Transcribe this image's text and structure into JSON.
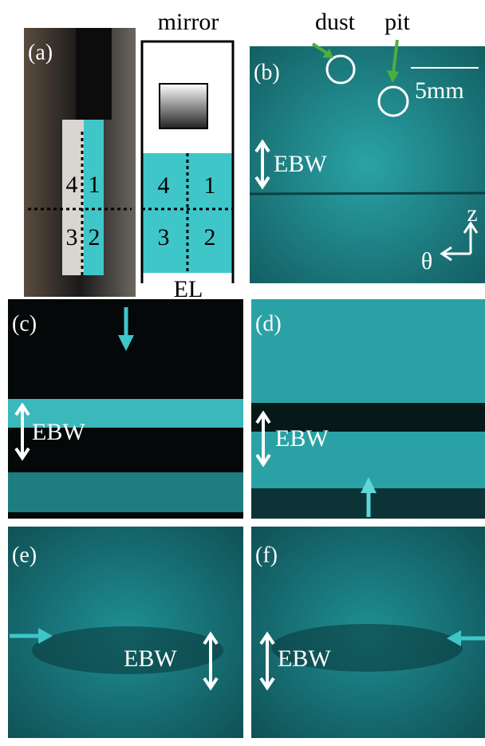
{
  "panel_a": {
    "label": "(a)",
    "quadrants": [
      "4",
      "1",
      "3",
      "2"
    ]
  },
  "diagram": {
    "top_label": "mirror",
    "bottom_label": "EL",
    "quadrants": [
      "4",
      "1",
      "3",
      "2"
    ]
  },
  "panel_b": {
    "label": "(b)",
    "dust_label": "dust",
    "pit_label": "pit",
    "scale_label": "5mm",
    "ebw_label": "EBW",
    "z_label": "z",
    "theta_label": "θ"
  },
  "panel_c": {
    "label": "(c)",
    "ebw_label": "EBW"
  },
  "panel_d": {
    "label": "(d)",
    "ebw_label": "EBW"
  },
  "panel_e": {
    "label": "(e)",
    "ebw_label": "EBW"
  },
  "panel_f": {
    "label": "(f)",
    "ebw_label": "EBW"
  }
}
